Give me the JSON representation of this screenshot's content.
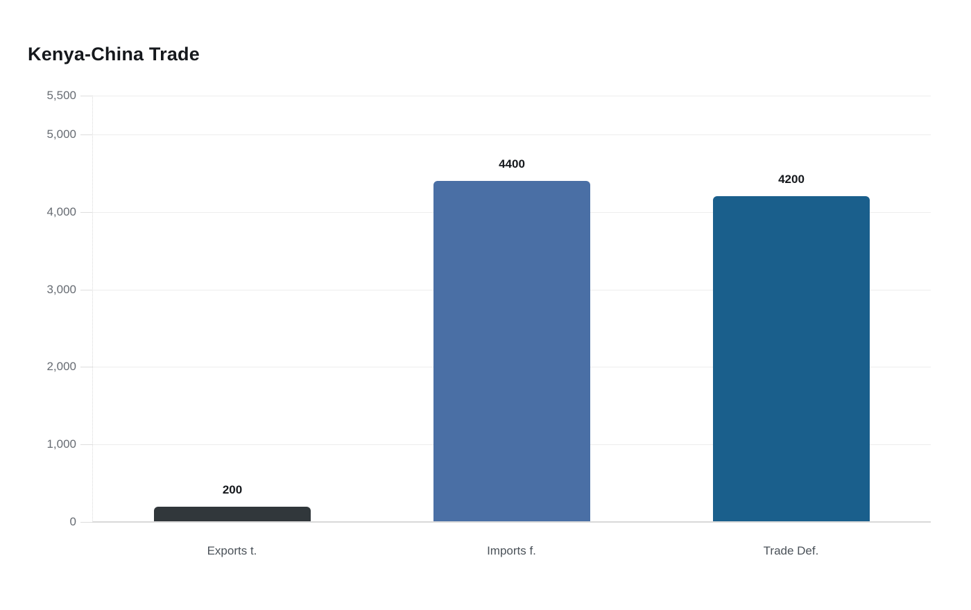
{
  "page": {
    "background": "#ffffff"
  },
  "chart_data": {
    "type": "bar",
    "title": "Kenya-China Trade",
    "categories": [
      "Exports t.",
      "Imports f.",
      "Trade Def."
    ],
    "values": [
      200,
      4400,
      4200
    ],
    "value_labels": [
      "200",
      "4400",
      "4200"
    ],
    "bar_colors": [
      "#31373b",
      "#4a6fa5",
      "#1a5f8c"
    ],
    "bar_patterns": [
      "dots",
      "solid",
      "solid"
    ],
    "xlabel": "",
    "ylabel": "",
    "ylim": [
      0,
      5500
    ],
    "yticks": [
      0,
      1000,
      2000,
      3000,
      4000,
      5000,
      5500
    ],
    "ytick_labels": [
      "0",
      "1,000",
      "2,000",
      "3,000",
      "4,000",
      "5,000",
      "5,500"
    ],
    "grid": true,
    "legend": false,
    "colors": {
      "title": "#16191d",
      "grid": "#ededed",
      "zero_line": "#d8d8d8",
      "axis_dotted": "#d9d9d9",
      "tick": "#dddddd",
      "ytick_label": "#666b72",
      "category_label": "#4a5158",
      "value_label": "#15181c"
    }
  }
}
